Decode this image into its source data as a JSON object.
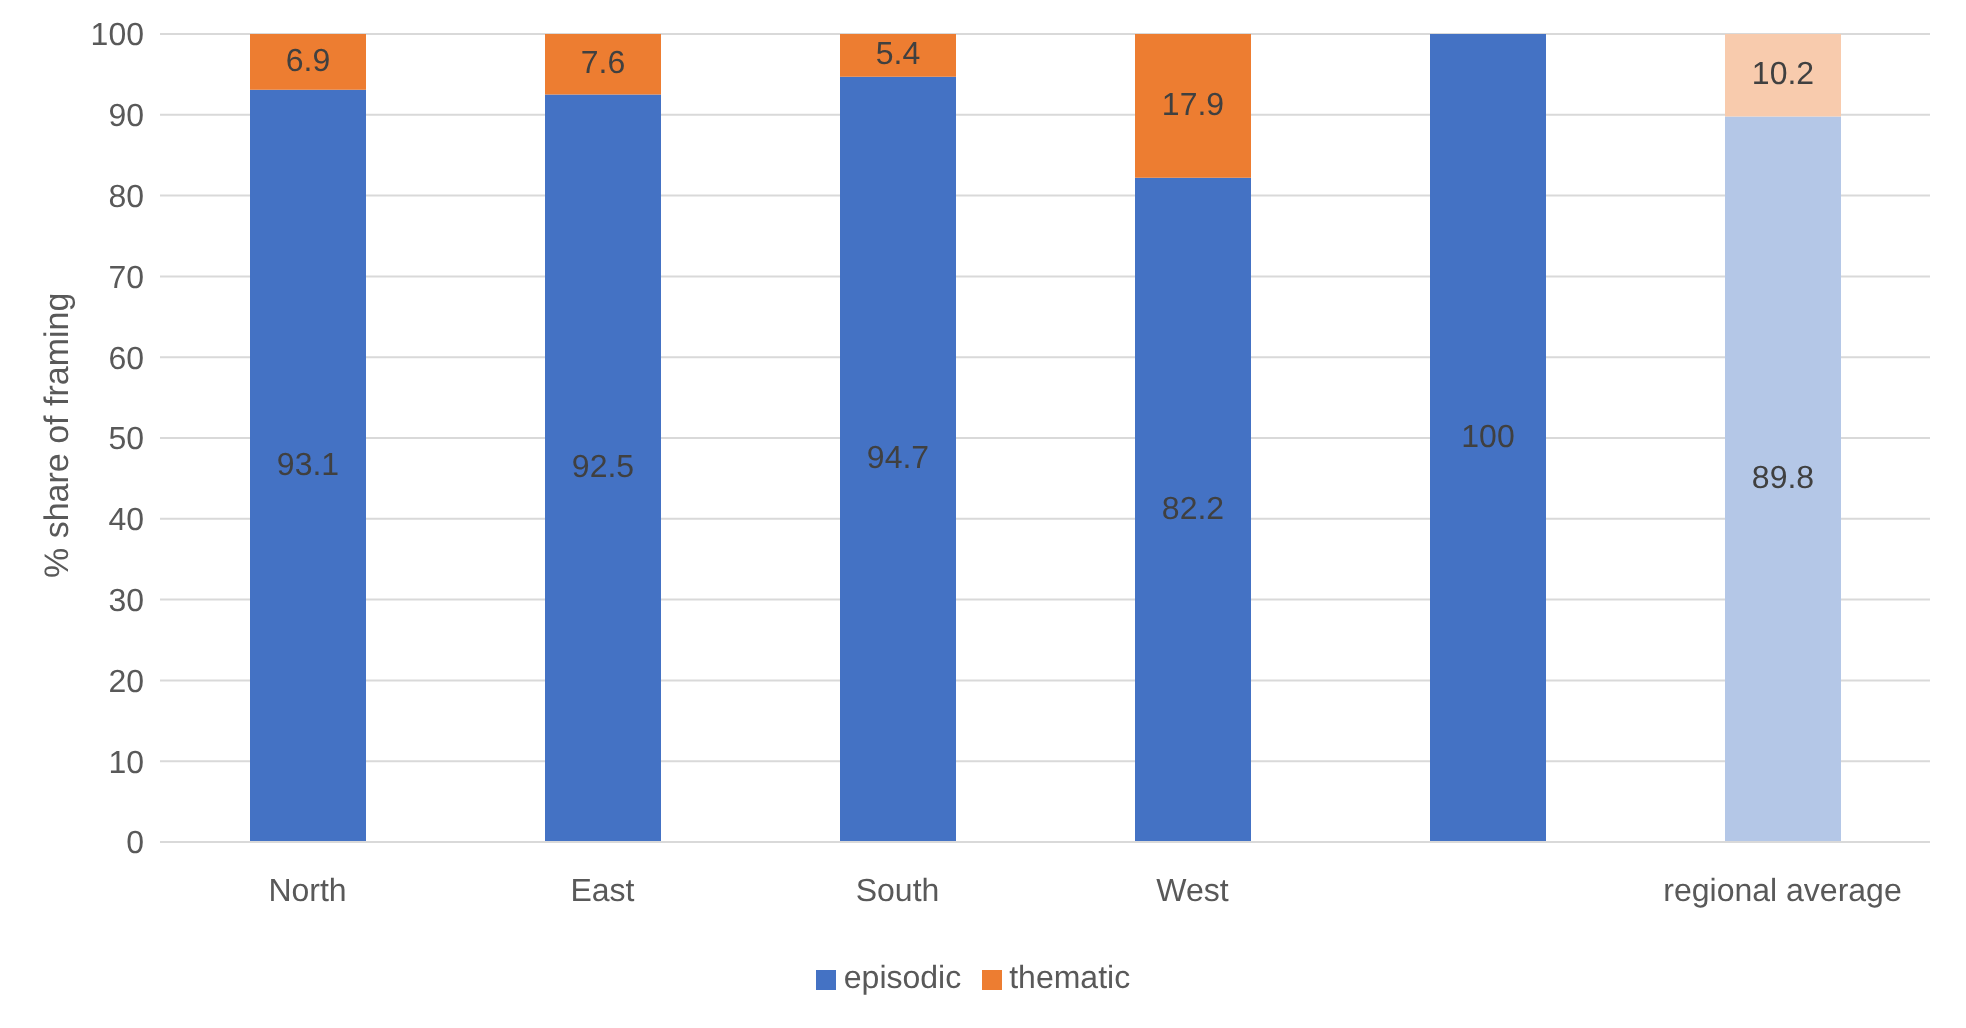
{
  "chart_data": {
    "type": "bar",
    "stacked": true,
    "ylabel": "% share of framing",
    "categories": [
      "North",
      "East",
      "South",
      "West",
      null,
      "regional average"
    ],
    "series": [
      {
        "name": "episodic",
        "color": "#4472c4",
        "colors": [
          "#4472c4",
          "#4472c4",
          "#4472c4",
          "#4472c4",
          "#4472c4",
          "#b4c7e7"
        ],
        "values": [
          93.1,
          92.5,
          94.7,
          82.2,
          100,
          89.8
        ],
        "value_labels": [
          "93.1",
          "92.5",
          "94.7",
          "82.2",
          "100",
          "89.8"
        ]
      },
      {
        "name": "thematic",
        "color": "#ed7d31",
        "colors": [
          "#ed7d31",
          "#ed7d31",
          "#ed7d31",
          "#ed7d31",
          "#ed7d31",
          "#f8cbad"
        ],
        "values": [
          6.9,
          7.6,
          5.4,
          17.9,
          0,
          10.2
        ],
        "value_labels": [
          "6.9",
          "7.6",
          "5.4",
          "17.9",
          null,
          "10.2"
        ]
      }
    ],
    "ylim": [
      0,
      100
    ],
    "yticks": [
      0,
      10,
      20,
      30,
      40,
      50,
      60,
      70,
      80,
      90,
      100
    ],
    "grid": "y",
    "legend": "bottom"
  }
}
